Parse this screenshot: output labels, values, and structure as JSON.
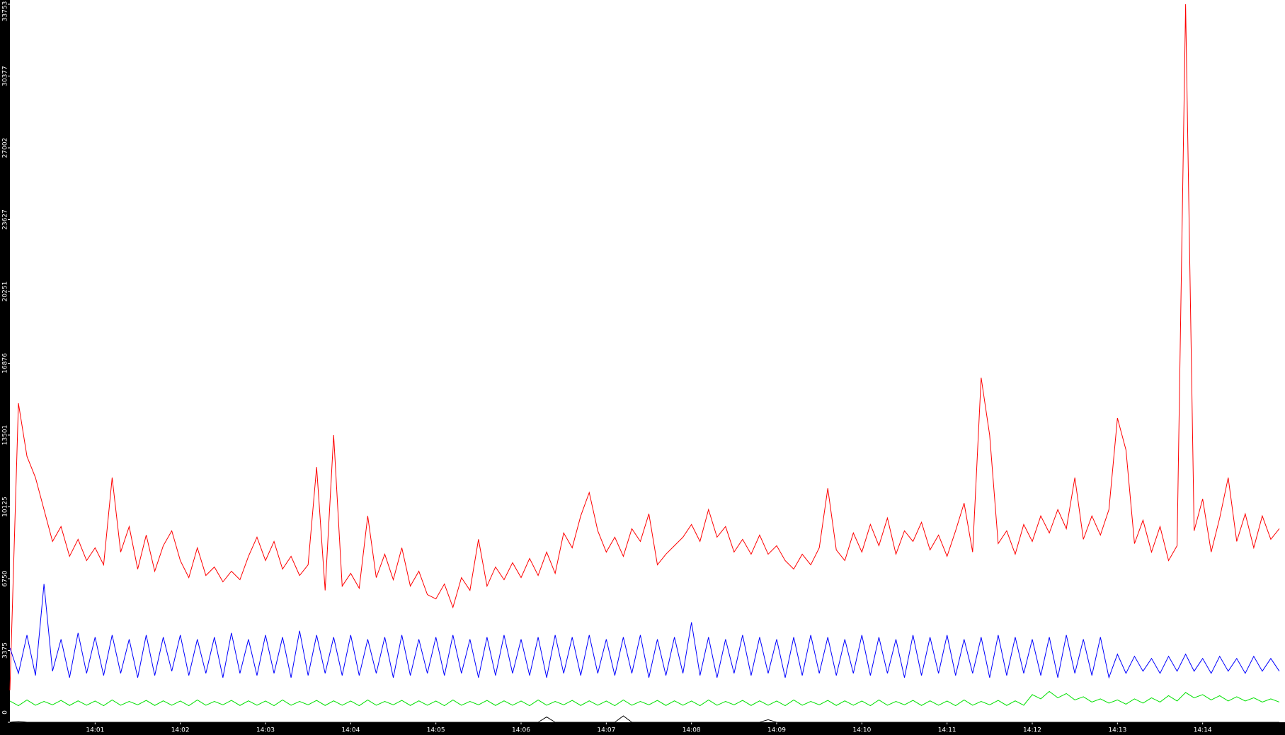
{
  "chart_data": {
    "type": "line",
    "x": [
      "14:00:00",
      "14:00:06",
      "14:00:12",
      "14:00:18",
      "14:00:24",
      "14:00:30",
      "14:00:36",
      "14:00:42",
      "14:00:48",
      "14:00:54",
      "14:01:00",
      "14:01:06",
      "14:01:12",
      "14:01:18",
      "14:01:24",
      "14:01:30",
      "14:01:36",
      "14:01:42",
      "14:01:48",
      "14:01:54",
      "14:02:00",
      "14:02:06",
      "14:02:12",
      "14:02:18",
      "14:02:24",
      "14:02:30",
      "14:02:36",
      "14:02:42",
      "14:02:48",
      "14:02:54",
      "14:03:00",
      "14:03:06",
      "14:03:12",
      "14:03:18",
      "14:03:24",
      "14:03:30",
      "14:03:36",
      "14:03:42",
      "14:03:48",
      "14:03:54",
      "14:04:00",
      "14:04:06",
      "14:04:12",
      "14:04:18",
      "14:04:24",
      "14:04:30",
      "14:04:36",
      "14:04:42",
      "14:04:48",
      "14:04:54",
      "14:05:00",
      "14:05:06",
      "14:05:12",
      "14:05:18",
      "14:05:24",
      "14:05:30",
      "14:05:36",
      "14:05:42",
      "14:05:48",
      "14:05:54",
      "14:06:00",
      "14:06:06",
      "14:06:12",
      "14:06:18",
      "14:06:24",
      "14:06:30",
      "14:06:36",
      "14:06:42",
      "14:06:48",
      "14:06:54",
      "14:07:00",
      "14:07:06",
      "14:07:12",
      "14:07:18",
      "14:07:24",
      "14:07:30",
      "14:07:36",
      "14:07:42",
      "14:07:48",
      "14:07:54",
      "14:08:00",
      "14:08:06",
      "14:08:12",
      "14:08:18",
      "14:08:24",
      "14:08:30",
      "14:08:36",
      "14:08:42",
      "14:08:48",
      "14:08:54",
      "14:09:00",
      "14:09:06",
      "14:09:12",
      "14:09:18",
      "14:09:24",
      "14:09:30",
      "14:09:36",
      "14:09:42",
      "14:09:48",
      "14:09:54",
      "14:10:00",
      "14:10:06",
      "14:10:12",
      "14:10:18",
      "14:10:24",
      "14:10:30",
      "14:10:36",
      "14:10:42",
      "14:10:48",
      "14:10:54",
      "14:11:00",
      "14:11:06",
      "14:11:12",
      "14:11:18",
      "14:11:24",
      "14:11:30",
      "14:11:36",
      "14:11:42",
      "14:11:48",
      "14:11:54",
      "14:12:00",
      "14:12:06",
      "14:12:12",
      "14:12:18",
      "14:12:24",
      "14:12:30",
      "14:12:36",
      "14:12:42",
      "14:12:48",
      "14:12:54",
      "14:13:00",
      "14:13:06",
      "14:13:12",
      "14:13:18",
      "14:13:24",
      "14:13:30",
      "14:13:36",
      "14:13:42",
      "14:13:48",
      "14:13:54",
      "14:14:00",
      "14:14:06",
      "14:14:12",
      "14:14:18",
      "14:14:24",
      "14:14:30",
      "14:14:36",
      "14:14:42",
      "14:14:48",
      "14:14:54"
    ],
    "series": [
      {
        "color": "#ff0000",
        "values": [
          1500,
          15000,
          12500,
          11500,
          10000,
          8500,
          9200,
          7800,
          8600,
          7600,
          8200,
          7400,
          11500,
          8000,
          9200,
          7200,
          8800,
          7100,
          8300,
          9000,
          7600,
          6800,
          8200,
          6900,
          7300,
          6600,
          7100,
          6700,
          7800,
          8700,
          7600,
          8500,
          7200,
          7800,
          6900,
          7400,
          12000,
          6200,
          13500,
          6400,
          7000,
          6300,
          9700,
          6800,
          7900,
          6700,
          8200,
          6400,
          7100,
          6000,
          5800,
          6500,
          5400,
          6800,
          6200,
          8600,
          6400,
          7300,
          6700,
          7500,
          6800,
          7700,
          6900,
          8000,
          7000,
          8900,
          8200,
          9700,
          10800,
          9000,
          8000,
          8700,
          7800,
          9100,
          8500,
          9800,
          7400,
          7900,
          8300,
          8700,
          9300,
          8500,
          10000,
          8700,
          9200,
          8000,
          8600,
          7900,
          8800,
          7900,
          8300,
          7600,
          7200,
          7900,
          7400,
          8200,
          11000,
          8100,
          7600,
          8900,
          8000,
          9300,
          8300,
          9600,
          7900,
          9000,
          8500,
          9400,
          8100,
          8800,
          7800,
          9000,
          10300,
          8000,
          16200,
          13500,
          8400,
          9000,
          7900,
          9300,
          8500,
          9700,
          8900,
          10000,
          9100,
          11500,
          8600,
          9700,
          8800,
          10000,
          14300,
          12800,
          8400,
          9500,
          8000,
          9200,
          7600,
          8300,
          33753,
          9000,
          10500,
          8000,
          9600,
          11500,
          8500,
          9800,
          8200,
          9700,
          8600,
          9100
        ]
      },
      {
        "color": "#0000ff",
        "values": [
          3500,
          2300,
          4100,
          2200,
          6500,
          2400,
          3900,
          2100,
          4200,
          2300,
          4000,
          2200,
          4100,
          2300,
          3900,
          2100,
          4100,
          2200,
          4000,
          2400,
          4100,
          2200,
          3900,
          2300,
          4000,
          2100,
          4200,
          2300,
          3900,
          2200,
          4100,
          2300,
          4000,
          2100,
          4300,
          2200,
          4100,
          2300,
          4000,
          2200,
          4100,
          2200,
          3900,
          2300,
          4000,
          2100,
          4100,
          2200,
          3900,
          2300,
          4000,
          2200,
          4100,
          2300,
          3900,
          2100,
          4000,
          2200,
          4100,
          2300,
          3900,
          2200,
          4000,
          2100,
          4100,
          2300,
          4000,
          2200,
          4100,
          2300,
          3900,
          2200,
          4000,
          2300,
          4100,
          2100,
          3900,
          2200,
          4000,
          2300,
          4700,
          2200,
          4000,
          2100,
          3900,
          2300,
          4100,
          2200,
          4000,
          2300,
          3900,
          2100,
          4000,
          2200,
          4100,
          2300,
          4000,
          2200,
          3900,
          2300,
          4100,
          2200,
          4000,
          2300,
          3900,
          2100,
          4100,
          2200,
          4000,
          2300,
          4100,
          2200,
          3900,
          2300,
          4000,
          2100,
          4100,
          2200,
          4000,
          2300,
          3900,
          2200,
          4000,
          2100,
          4100,
          2300,
          3900,
          2200,
          4000,
          2100,
          3200,
          2300,
          3100,
          2400,
          3000,
          2300,
          3100,
          2400,
          3200,
          2400,
          3000,
          2300,
          3100,
          2400,
          3000,
          2300,
          3100,
          2400,
          3000,
          2400
        ]
      },
      {
        "color": "#00e000",
        "values": [
          1000,
          780,
          1050,
          800,
          980,
          820,
          1030,
          790,
          1010,
          800,
          1000,
          780,
          1050,
          800,
          980,
          820,
          1030,
          790,
          1010,
          800,
          1000,
          780,
          1050,
          800,
          980,
          820,
          1030,
          790,
          1010,
          800,
          1000,
          780,
          1050,
          800,
          980,
          820,
          1030,
          790,
          1010,
          800,
          1000,
          780,
          1050,
          800,
          980,
          820,
          1030,
          790,
          1010,
          800,
          1000,
          780,
          1050,
          800,
          980,
          820,
          1030,
          790,
          1010,
          800,
          1000,
          780,
          1050,
          800,
          980,
          820,
          1030,
          790,
          1010,
          800,
          1000,
          780,
          1050,
          800,
          980,
          820,
          1030,
          790,
          1010,
          800,
          1000,
          780,
          1050,
          800,
          980,
          820,
          1030,
          790,
          1010,
          800,
          1000,
          780,
          1050,
          800,
          980,
          820,
          1030,
          790,
          1010,
          800,
          1000,
          780,
          1050,
          800,
          980,
          820,
          1030,
          790,
          1010,
          800,
          1000,
          780,
          1050,
          800,
          980,
          820,
          1030,
          790,
          1010,
          800,
          1300,
          1100,
          1450,
          1150,
          1350,
          1050,
          1200,
          950,
          1100,
          900,
          1050,
          850,
          1100,
          900,
          1150,
          950,
          1250,
          1000,
          1400,
          1150,
          1300,
          1050,
          1250,
          1000,
          1200,
          1000,
          1150,
          950,
          1100,
          950
        ]
      },
      {
        "color": "#000000",
        "values": [
          0,
          50,
          0,
          0,
          0,
          0,
          0,
          0,
          0,
          0,
          0,
          0,
          0,
          0,
          0,
          0,
          0,
          0,
          0,
          0,
          0,
          0,
          0,
          0,
          0,
          0,
          0,
          0,
          0,
          0,
          0,
          0,
          0,
          0,
          0,
          0,
          0,
          0,
          0,
          0,
          0,
          0,
          0,
          0,
          0,
          0,
          0,
          0,
          0,
          0,
          0,
          0,
          0,
          0,
          0,
          0,
          0,
          0,
          0,
          0,
          0,
          0,
          0,
          250,
          0,
          0,
          0,
          0,
          0,
          0,
          0,
          0,
          300,
          0,
          0,
          0,
          0,
          0,
          0,
          0,
          0,
          0,
          0,
          0,
          0,
          0,
          0,
          0,
          0,
          120,
          0,
          0,
          0,
          0,
          0,
          0,
          0,
          0,
          0,
          0,
          0,
          0,
          0,
          0,
          0,
          0,
          0,
          0,
          0,
          0,
          0,
          0,
          0,
          0,
          0,
          0,
          0,
          0,
          0,
          0,
          0,
          0,
          0,
          0,
          0,
          0,
          0,
          0,
          0,
          0,
          0,
          0,
          0,
          0,
          0,
          0,
          0,
          0,
          0,
          0,
          0,
          0,
          0,
          0,
          0,
          0,
          0,
          0,
          0,
          0
        ]
      }
    ],
    "xlim": [
      "14:00:00",
      "14:14:58"
    ],
    "xticks": [
      "14:01",
      "14:02",
      "14:03",
      "14:04",
      "14:05",
      "14:06",
      "14:07",
      "14:08",
      "14:09",
      "14:10",
      "14:11",
      "14:12",
      "14:13",
      "14:14"
    ],
    "ylim": [
      0,
      33753
    ],
    "yticks": [
      0,
      3375,
      6750,
      10125,
      13501,
      16876,
      20251,
      23627,
      27002,
      30377,
      33753
    ],
    "axis_color": "#000000"
  }
}
